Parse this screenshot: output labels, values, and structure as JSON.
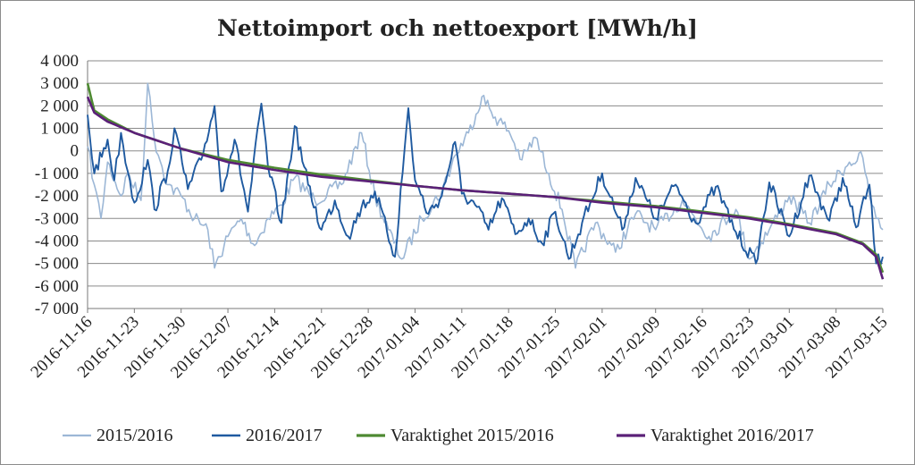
{
  "chart_data": {
    "type": "line",
    "title": "Nettoimport och nettoexport [MWh/h]",
    "xlabel": "",
    "ylabel": "",
    "ylim": [
      -7000,
      4000
    ],
    "y_ticks": [
      4000,
      3000,
      2000,
      1000,
      0,
      -1000,
      -2000,
      -3000,
      -4000,
      -5000,
      -6000,
      -7000
    ],
    "y_tick_labels": [
      "4 000",
      "3 000",
      "2 000",
      "1 000",
      "0",
      "-1 000",
      "-2 000",
      "-3 000",
      "-4 000",
      "-5 000",
      "-6 000",
      "-7 000"
    ],
    "x_range": [
      "2016-11-16",
      "2017-03-15"
    ],
    "x_tick_labels": [
      "2016-11-16",
      "2016-11-23",
      "2016-11-30",
      "2016-12-07",
      "2016-12-14",
      "2016-12-21",
      "2016-12-28",
      "2017-01-04",
      "2017-01-11",
      "2017-01-18",
      "2017-01-25",
      "2017-02-01",
      "2017-02-09",
      "2017-02-16",
      "2017-02-23",
      "2017-03-01",
      "2017-03-08",
      "2017-03-15"
    ],
    "grid": "horizontal",
    "legend_position": "bottom",
    "series": [
      {
        "name": "2015/2016",
        "color": "#9cb7d6",
        "width": 1.6,
        "points": [
          [
            "2016-11-16",
            200
          ],
          [
            "2016-11-17",
            -1500
          ],
          [
            "2016-11-18",
            -3000
          ],
          [
            "2016-11-19",
            -500
          ],
          [
            "2016-11-21",
            -2000
          ],
          [
            "2016-11-22",
            -1000
          ],
          [
            "2016-11-24",
            -2200
          ],
          [
            "2016-11-25",
            3000
          ],
          [
            "2016-11-26",
            500
          ],
          [
            "2016-11-28",
            -1500
          ],
          [
            "2016-11-30",
            -2000
          ],
          [
            "2016-12-02",
            -3000
          ],
          [
            "2016-12-04",
            -3500
          ],
          [
            "2016-12-05",
            -5200
          ],
          [
            "2016-12-07",
            -3800
          ],
          [
            "2016-12-09",
            -3000
          ],
          [
            "2016-12-11",
            -4200
          ],
          [
            "2016-12-13",
            -3000
          ],
          [
            "2016-12-15",
            -2400
          ],
          [
            "2016-12-17",
            -1200
          ],
          [
            "2016-12-20",
            -2200
          ],
          [
            "2016-12-24",
            -1500
          ],
          [
            "2016-12-27",
            800
          ],
          [
            "2016-12-29",
            -2000
          ],
          [
            "2016-12-31",
            -3500
          ],
          [
            "2017-01-02",
            -4800
          ],
          [
            "2017-01-05",
            -3000
          ],
          [
            "2017-01-08",
            -1800
          ],
          [
            "2017-01-10",
            -200
          ],
          [
            "2017-01-12",
            800
          ],
          [
            "2017-01-14",
            2400
          ],
          [
            "2017-01-16",
            1500
          ],
          [
            "2017-01-18",
            900
          ],
          [
            "2017-01-20",
            -400
          ],
          [
            "2017-01-22",
            600
          ],
          [
            "2017-01-24",
            -1000
          ],
          [
            "2017-01-26",
            -2600
          ],
          [
            "2017-01-28",
            -5200
          ],
          [
            "2017-01-31",
            -3200
          ],
          [
            "2017-02-03",
            -4500
          ],
          [
            "2017-02-06",
            -2800
          ],
          [
            "2017-02-09",
            -3500
          ],
          [
            "2017-02-13",
            -2200
          ],
          [
            "2017-02-17",
            -3800
          ],
          [
            "2017-02-21",
            -2600
          ],
          [
            "2017-02-23",
            -4800
          ],
          [
            "2017-02-26",
            -3500
          ],
          [
            "2017-03-01",
            -2000
          ],
          [
            "2017-03-04",
            -3200
          ],
          [
            "2017-03-07",
            -1500
          ],
          [
            "2017-03-10",
            -500
          ],
          [
            "2017-03-12",
            -300
          ],
          [
            "2017-03-13",
            -2000
          ],
          [
            "2017-03-14",
            -3000
          ],
          [
            "2017-03-15",
            -3500
          ]
        ]
      },
      {
        "name": "2016/2017",
        "color": "#1f5aa0",
        "width": 1.9,
        "points": [
          [
            "2016-11-16",
            1600
          ],
          [
            "2016-11-17",
            -1000
          ],
          [
            "2016-11-19",
            500
          ],
          [
            "2016-11-20",
            -1300
          ],
          [
            "2016-11-21",
            800
          ],
          [
            "2016-11-22",
            -900
          ],
          [
            "2016-11-23",
            -2300
          ],
          [
            "2016-11-25",
            -400
          ],
          [
            "2016-11-26",
            -2600
          ],
          [
            "2016-11-28",
            -900
          ],
          [
            "2016-11-29",
            1000
          ],
          [
            "2016-12-01",
            -1700
          ],
          [
            "2016-12-03",
            -400
          ],
          [
            "2016-12-05",
            2000
          ],
          [
            "2016-12-06",
            -1800
          ],
          [
            "2016-12-08",
            500
          ],
          [
            "2016-12-10",
            -2700
          ],
          [
            "2016-12-12",
            2100
          ],
          [
            "2016-12-13",
            -700
          ],
          [
            "2016-12-15",
            -3200
          ],
          [
            "2016-12-17",
            1100
          ],
          [
            "2016-12-19",
            -1500
          ],
          [
            "2016-12-21",
            -3500
          ],
          [
            "2016-12-23",
            -2200
          ],
          [
            "2016-12-25",
            -3800
          ],
          [
            "2016-12-27",
            -2500
          ],
          [
            "2016-12-29",
            -1800
          ],
          [
            "2017-01-01",
            -4700
          ],
          [
            "2017-01-03",
            1900
          ],
          [
            "2017-01-04",
            -1300
          ],
          [
            "2017-01-06",
            -2800
          ],
          [
            "2017-01-08",
            -2000
          ],
          [
            "2017-01-10",
            400
          ],
          [
            "2017-01-11",
            -1900
          ],
          [
            "2017-01-13",
            -2400
          ],
          [
            "2017-01-15",
            -3500
          ],
          [
            "2017-01-17",
            -2100
          ],
          [
            "2017-01-19",
            -3700
          ],
          [
            "2017-01-21",
            -3000
          ],
          [
            "2017-01-23",
            -4100
          ],
          [
            "2017-01-25",
            -2700
          ],
          [
            "2017-01-27",
            -4800
          ],
          [
            "2017-01-29",
            -3200
          ],
          [
            "2017-02-01",
            -1000
          ],
          [
            "2017-02-04",
            -3500
          ],
          [
            "2017-02-06",
            -1200
          ],
          [
            "2017-02-09",
            -3000
          ],
          [
            "2017-02-12",
            -1500
          ],
          [
            "2017-02-15",
            -3200
          ],
          [
            "2017-02-18",
            -1600
          ],
          [
            "2017-02-21",
            -3600
          ],
          [
            "2017-02-24",
            -5000
          ],
          [
            "2017-02-26",
            -1400
          ],
          [
            "2017-03-01",
            -3800
          ],
          [
            "2017-03-04",
            -1100
          ],
          [
            "2017-03-07",
            -3100
          ],
          [
            "2017-03-09",
            -1200
          ],
          [
            "2017-03-11",
            -3400
          ],
          [
            "2017-03-13",
            -1500
          ],
          [
            "2017-03-14",
            -5000
          ],
          [
            "2017-03-15",
            -4700
          ]
        ]
      },
      {
        "name": "Varaktighet 2015/2016",
        "color": "#4e8a32",
        "width": 2.6,
        "points": [
          [
            "2016-11-16",
            3000
          ],
          [
            "2016-11-17",
            1800
          ],
          [
            "2016-11-19",
            1400
          ],
          [
            "2016-11-23",
            800
          ],
          [
            "2016-11-30",
            100
          ],
          [
            "2016-12-07",
            -400
          ],
          [
            "2016-12-14",
            -750
          ],
          [
            "2016-12-21",
            -1050
          ],
          [
            "2016-12-28",
            -1300
          ],
          [
            "2017-01-04",
            -1550
          ],
          [
            "2017-01-11",
            -1750
          ],
          [
            "2017-01-18",
            -1900
          ],
          [
            "2017-01-25",
            -2050
          ],
          [
            "2017-02-01",
            -2250
          ],
          [
            "2017-02-09",
            -2450
          ],
          [
            "2017-02-16",
            -2700
          ],
          [
            "2017-02-23",
            -2950
          ],
          [
            "2017-03-01",
            -3250
          ],
          [
            "2017-03-08",
            -3650
          ],
          [
            "2017-03-12",
            -4100
          ],
          [
            "2017-03-14",
            -4600
          ],
          [
            "2017-03-15",
            -5400
          ]
        ]
      },
      {
        "name": "Varaktighet 2016/2017",
        "color": "#5b2078",
        "width": 2.6,
        "points": [
          [
            "2016-11-16",
            2400
          ],
          [
            "2016-11-17",
            1700
          ],
          [
            "2016-11-19",
            1300
          ],
          [
            "2016-11-23",
            800
          ],
          [
            "2016-11-30",
            100
          ],
          [
            "2016-12-07",
            -500
          ],
          [
            "2016-12-14",
            -850
          ],
          [
            "2016-12-21",
            -1150
          ],
          [
            "2016-12-28",
            -1350
          ],
          [
            "2017-01-04",
            -1550
          ],
          [
            "2017-01-11",
            -1750
          ],
          [
            "2017-01-18",
            -1900
          ],
          [
            "2017-01-25",
            -2050
          ],
          [
            "2017-02-01",
            -2300
          ],
          [
            "2017-02-09",
            -2500
          ],
          [
            "2017-02-16",
            -2750
          ],
          [
            "2017-02-23",
            -3000
          ],
          [
            "2017-03-01",
            -3300
          ],
          [
            "2017-03-08",
            -3700
          ],
          [
            "2017-03-12",
            -4150
          ],
          [
            "2017-03-14",
            -4700
          ],
          [
            "2017-03-15",
            -5700
          ]
        ]
      }
    ]
  }
}
